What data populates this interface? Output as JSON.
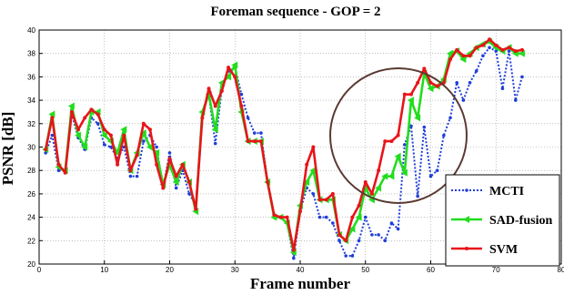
{
  "chart_data": {
    "type": "line",
    "title": "Foreman sequence - GOP = 2",
    "xlabel": "Frame number",
    "ylabel": "PSNR [dB]",
    "xlim": [
      0,
      80
    ],
    "ylim": [
      20,
      40
    ],
    "xticks": [
      0,
      10,
      20,
      30,
      40,
      50,
      60,
      70,
      80
    ],
    "yticks": [
      20,
      22,
      24,
      26,
      28,
      30,
      32,
      34,
      36,
      38,
      40
    ],
    "grid": true,
    "legend_position": "bottom-right",
    "annotation": "circle highlighting frames 50-60",
    "x": [
      1,
      2,
      3,
      4,
      5,
      6,
      7,
      8,
      9,
      10,
      11,
      12,
      13,
      14,
      15,
      16,
      17,
      18,
      19,
      20,
      21,
      22,
      23,
      24,
      25,
      26,
      27,
      28,
      29,
      30,
      31,
      32,
      33,
      34,
      35,
      36,
      37,
      38,
      39,
      40,
      41,
      42,
      43,
      44,
      45,
      46,
      47,
      48,
      49,
      50,
      51,
      52,
      53,
      54,
      55,
      56,
      57,
      58,
      59,
      60,
      61,
      62,
      63,
      64,
      65,
      66,
      67,
      68,
      69,
      70,
      71,
      72,
      73,
      74
    ],
    "series": [
      {
        "name": "MCTI",
        "color": "#1f3fd8",
        "style": "dotted",
        "marker": "dot",
        "values": [
          29.5,
          31.0,
          28.0,
          28.0,
          32.8,
          30.8,
          29.8,
          32.5,
          32.0,
          30.2,
          30.0,
          29.0,
          30.0,
          27.5,
          27.5,
          30.5,
          31.0,
          30.0,
          26.5,
          29.5,
          26.5,
          28.0,
          26.0,
          25.0,
          33.0,
          34.5,
          30.3,
          35.0,
          36.5,
          36.8,
          34.5,
          32.5,
          31.2,
          31.2,
          27.0,
          24.0,
          24.0,
          23.5,
          20.5,
          24.5,
          26.5,
          26.0,
          24.0,
          24.0,
          23.5,
          22.0,
          20.7,
          20.7,
          22.0,
          24.0,
          22.5,
          22.5,
          22.0,
          23.5,
          23.0,
          30.2,
          31.8,
          25.8,
          31.7,
          27.5,
          28.0,
          31.0,
          32.5,
          35.5,
          34.0,
          35.5,
          36.5,
          37.8,
          38.5,
          38.2,
          35.0,
          38.2,
          34.0,
          36.0
        ]
      },
      {
        "name": "SAD-fusion",
        "color": "#22dd1e",
        "style": "solid",
        "marker": "triangle",
        "values": [
          29.8,
          32.8,
          28.3,
          28.0,
          33.5,
          31.0,
          30.0,
          33.0,
          33.0,
          31.0,
          30.5,
          29.5,
          31.5,
          28.0,
          29.5,
          31.2,
          30.0,
          29.5,
          26.8,
          28.5,
          27.0,
          28.5,
          27.0,
          24.5,
          33.0,
          34.5,
          31.5,
          35.5,
          36.0,
          37.0,
          33.0,
          30.5,
          30.5,
          30.5,
          27.0,
          24.0,
          24.0,
          23.5,
          21.0,
          25.0,
          27.0,
          28.0,
          25.5,
          25.5,
          25.5,
          22.5,
          22.0,
          23.0,
          24.0,
          26.5,
          25.5,
          26.5,
          27.5,
          27.5,
          29.2,
          27.8,
          34.0,
          32.5,
          36.3,
          35.0,
          35.2,
          35.8,
          38.0,
          38.2,
          37.5,
          38.0,
          38.5,
          38.8,
          39.0,
          38.5,
          38.2,
          38.5,
          38.0,
          38.0
        ]
      },
      {
        "name": "SVM",
        "color": "#e8141a",
        "style": "solid",
        "marker": "dot",
        "values": [
          29.8,
          32.5,
          28.5,
          27.8,
          33.0,
          31.5,
          32.5,
          33.2,
          32.8,
          31.5,
          31.0,
          28.5,
          31.0,
          28.0,
          29.3,
          32.0,
          31.5,
          28.5,
          26.5,
          29.0,
          27.5,
          28.5,
          27.0,
          24.7,
          32.5,
          35.0,
          33.5,
          34.8,
          36.8,
          36.0,
          33.5,
          30.5,
          30.5,
          30.5,
          27.0,
          24.2,
          24.0,
          24.0,
          21.2,
          24.5,
          28.5,
          30.0,
          25.5,
          25.5,
          26.0,
          22.5,
          22.0,
          24.0,
          25.0,
          27.0,
          26.0,
          28.0,
          30.5,
          30.5,
          31.0,
          34.5,
          34.5,
          35.5,
          36.7,
          35.5,
          35.2,
          35.5,
          37.5,
          38.3,
          37.8,
          37.8,
          38.5,
          38.7,
          39.2,
          38.7,
          38.3,
          38.5,
          38.2,
          38.3
        ]
      }
    ]
  }
}
